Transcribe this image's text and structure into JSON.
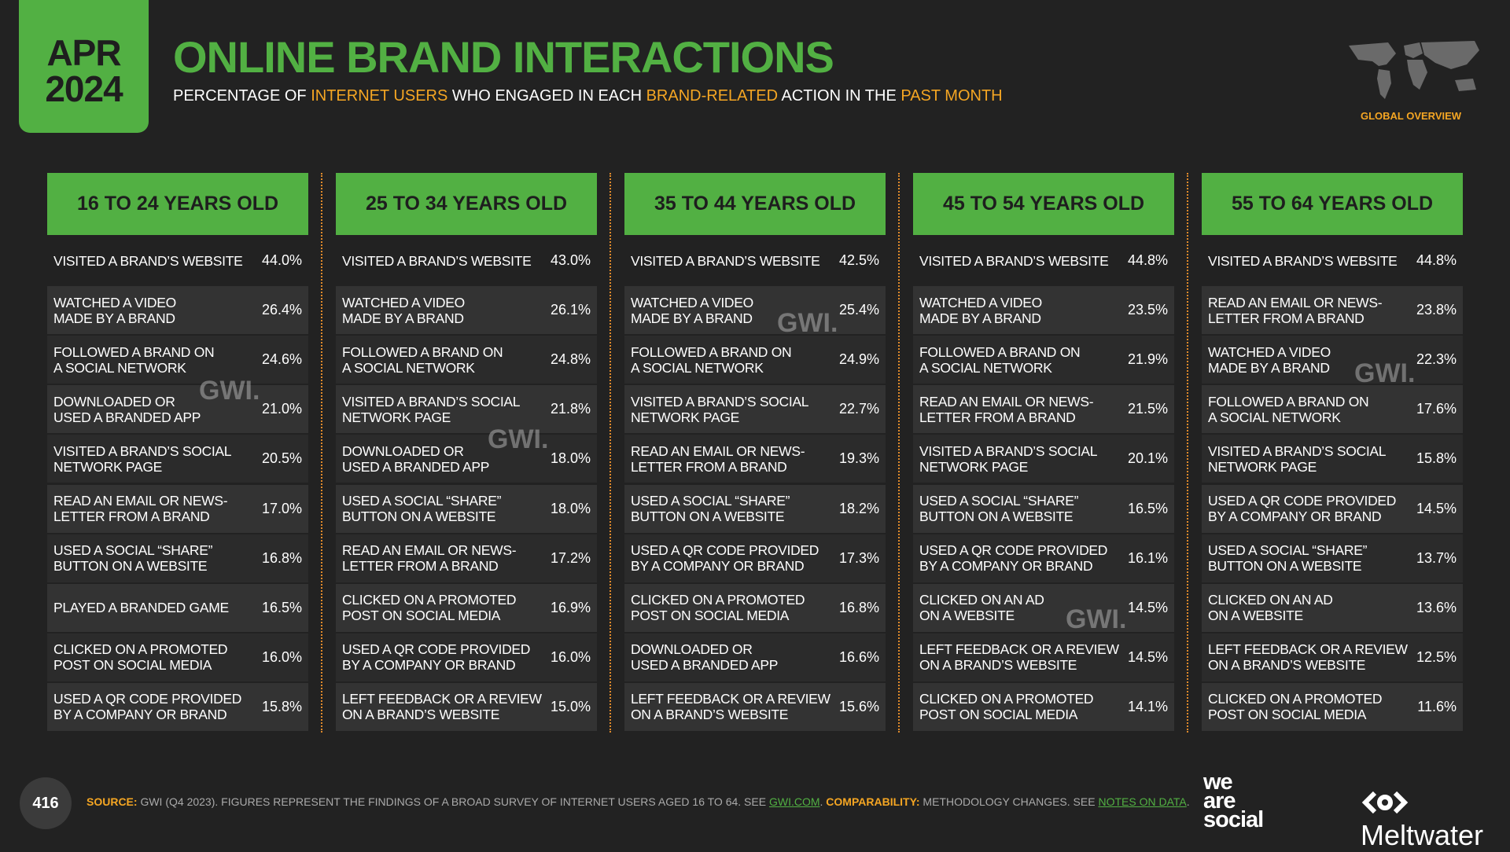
{
  "header": {
    "month": "APR",
    "year": "2024",
    "title": "ONLINE BRAND INTERACTIONS",
    "subtitle": [
      {
        "text": "PERCENTAGE OF ",
        "highlight": false
      },
      {
        "text": "INTERNET USERS",
        "highlight": true
      },
      {
        "text": " WHO ENGAGED IN EACH ",
        "highlight": false
      },
      {
        "text": "BRAND-RELATED",
        "highlight": true
      },
      {
        "text": " ACTION IN THE ",
        "highlight": false
      },
      {
        "text": "PAST MONTH",
        "highlight": true
      }
    ],
    "badge": "GLOBAL OVERVIEW"
  },
  "watermark": "GWI.",
  "columns": [
    {
      "header": "16 TO 24 YEARS OLD",
      "rows": [
        [
          [
            "VISITED A BRAND’S WEBSITE"
          ],
          "44.0%"
        ],
        [
          [
            "WATCHED A VIDEO",
            "MADE BY A BRAND"
          ],
          "26.4%"
        ],
        [
          [
            "FOLLOWED A BRAND ON",
            "A SOCIAL NETWORK"
          ],
          "24.6%"
        ],
        [
          [
            "DOWNLOADED OR",
            "USED A BRANDED APP"
          ],
          "21.0%"
        ],
        [
          [
            "VISITED A BRAND’S SOCIAL",
            "NETWORK PAGE"
          ],
          "20.5%"
        ],
        [
          [
            "READ AN EMAIL OR NEWS-",
            "LETTER FROM A BRAND"
          ],
          "17.0%"
        ],
        [
          [
            "USED A SOCIAL “SHARE”",
            "BUTTON ON A WEBSITE"
          ],
          "16.8%"
        ],
        [
          [
            "PLAYED A BRANDED GAME"
          ],
          "16.5%"
        ],
        [
          [
            "CLICKED ON A PROMOTED",
            "POST ON SOCIAL MEDIA"
          ],
          "16.0%"
        ],
        [
          [
            "USED A QR CODE PROVIDED",
            "BY A COMPANY OR BRAND"
          ],
          "15.8%"
        ]
      ]
    },
    {
      "header": "25 TO 34 YEARS OLD",
      "rows": [
        [
          [
            "VISITED A BRAND’S WEBSITE"
          ],
          "43.0%"
        ],
        [
          [
            "WATCHED A VIDEO",
            "MADE BY A BRAND"
          ],
          "26.1%"
        ],
        [
          [
            "FOLLOWED A BRAND ON",
            "A SOCIAL NETWORK"
          ],
          "24.8%"
        ],
        [
          [
            "VISITED A BRAND’S SOCIAL",
            "NETWORK PAGE"
          ],
          "21.8%"
        ],
        [
          [
            "DOWNLOADED OR",
            "USED A BRANDED APP"
          ],
          "18.0%"
        ],
        [
          [
            "USED A SOCIAL “SHARE”",
            "BUTTON ON A WEBSITE"
          ],
          "18.0%"
        ],
        [
          [
            "READ AN EMAIL OR NEWS-",
            "LETTER FROM A BRAND"
          ],
          "17.2%"
        ],
        [
          [
            "CLICKED ON A PROMOTED",
            "POST ON SOCIAL MEDIA"
          ],
          "16.9%"
        ],
        [
          [
            "USED A QR CODE PROVIDED",
            "BY A COMPANY OR BRAND"
          ],
          "16.0%"
        ],
        [
          [
            "LEFT FEEDBACK OR A REVIEW",
            "ON A BRAND’S WEBSITE"
          ],
          "15.0%"
        ]
      ]
    },
    {
      "header": "35 TO 44 YEARS OLD",
      "rows": [
        [
          [
            "VISITED A BRAND’S WEBSITE"
          ],
          "42.5%"
        ],
        [
          [
            "WATCHED A VIDEO",
            "MADE BY A BRAND"
          ],
          "25.4%"
        ],
        [
          [
            "FOLLOWED A BRAND ON",
            "A SOCIAL NETWORK"
          ],
          "24.9%"
        ],
        [
          [
            "VISITED A BRAND’S SOCIAL",
            "NETWORK PAGE"
          ],
          "22.7%"
        ],
        [
          [
            "READ AN EMAIL OR NEWS-",
            "LETTER FROM A BRAND"
          ],
          "19.3%"
        ],
        [
          [
            "USED A SOCIAL “SHARE”",
            "BUTTON ON A WEBSITE"
          ],
          "18.2%"
        ],
        [
          [
            "USED A QR CODE PROVIDED",
            "BY A COMPANY OR BRAND"
          ],
          "17.3%"
        ],
        [
          [
            "CLICKED ON A PROMOTED",
            "POST ON SOCIAL MEDIA"
          ],
          "16.8%"
        ],
        [
          [
            "DOWNLOADED OR",
            "USED A BRANDED APP"
          ],
          "16.6%"
        ],
        [
          [
            "LEFT FEEDBACK OR A REVIEW",
            "ON A BRAND’S WEBSITE"
          ],
          "15.6%"
        ]
      ]
    },
    {
      "header": "45 TO 54 YEARS OLD",
      "rows": [
        [
          [
            "VISITED A BRAND’S WEBSITE"
          ],
          "44.8%"
        ],
        [
          [
            "WATCHED A VIDEO",
            "MADE BY A BRAND"
          ],
          "23.5%"
        ],
        [
          [
            "FOLLOWED A BRAND ON",
            "A SOCIAL NETWORK"
          ],
          "21.9%"
        ],
        [
          [
            "READ AN EMAIL OR NEWS-",
            "LETTER FROM A BRAND"
          ],
          "21.5%"
        ],
        [
          [
            "VISITED A BRAND’S SOCIAL",
            "NETWORK PAGE"
          ],
          "20.1%"
        ],
        [
          [
            "USED A SOCIAL “SHARE”",
            "BUTTON ON A WEBSITE"
          ],
          "16.5%"
        ],
        [
          [
            "USED A QR CODE PROVIDED",
            "BY A COMPANY OR BRAND"
          ],
          "16.1%"
        ],
        [
          [
            "CLICKED ON AN AD",
            "ON A WEBSITE"
          ],
          "14.5%"
        ],
        [
          [
            "LEFT FEEDBACK OR A REVIEW",
            "ON A BRAND’S WEBSITE"
          ],
          "14.5%"
        ],
        [
          [
            "CLICKED ON A PROMOTED",
            "POST ON SOCIAL MEDIA"
          ],
          "14.1%"
        ]
      ]
    },
    {
      "header": "55 TO 64 YEARS OLD",
      "rows": [
        [
          [
            "VISITED A BRAND’S WEBSITE"
          ],
          "44.8%"
        ],
        [
          [
            "READ AN EMAIL OR NEWS-",
            "LETTER FROM A BRAND"
          ],
          "23.8%"
        ],
        [
          [
            "WATCHED A VIDEO",
            "MADE BY A BRAND"
          ],
          "22.3%"
        ],
        [
          [
            "FOLLOWED A BRAND ON",
            "A SOCIAL NETWORK"
          ],
          "17.6%"
        ],
        [
          [
            "VISITED A BRAND’S SOCIAL",
            "NETWORK PAGE"
          ],
          "15.8%"
        ],
        [
          [
            "USED A QR CODE PROVIDED",
            "BY A COMPANY OR BRAND"
          ],
          "14.5%"
        ],
        [
          [
            "USED A SOCIAL “SHARE”",
            "BUTTON ON A WEBSITE"
          ],
          "13.7%"
        ],
        [
          [
            "CLICKED ON AN AD",
            "ON A WEBSITE"
          ],
          "13.6%"
        ],
        [
          [
            "LEFT FEEDBACK OR A REVIEW",
            "ON A BRAND’S WEBSITE"
          ],
          "12.5%"
        ],
        [
          [
            "CLICKED ON A PROMOTED",
            "POST ON SOCIAL MEDIA"
          ],
          "11.6%"
        ]
      ]
    }
  ],
  "footer": {
    "page": "416",
    "source": [
      {
        "text": "SOURCE:",
        "style": "label"
      },
      {
        "text": " GWI (Q4 2023). FIGURES REPRESENT THE FINDINGS OF A BROAD SURVEY OF INTERNET USERS AGED 16 TO 64. SEE ",
        "style": "plain"
      },
      {
        "text": "GWI.COM",
        "style": "link"
      },
      {
        "text": ". ",
        "style": "plain"
      },
      {
        "text": "COMPARABILITY:",
        "style": "label"
      },
      {
        "text": " METHODOLOGY CHANGES. SEE ",
        "style": "plain"
      },
      {
        "text": "NOTES ON DATA",
        "style": "link"
      },
      {
        "text": ".",
        "style": "plain"
      }
    ],
    "logo_was": [
      "we",
      "are",
      "social"
    ],
    "logo_meltwater": "Meltwater"
  }
}
